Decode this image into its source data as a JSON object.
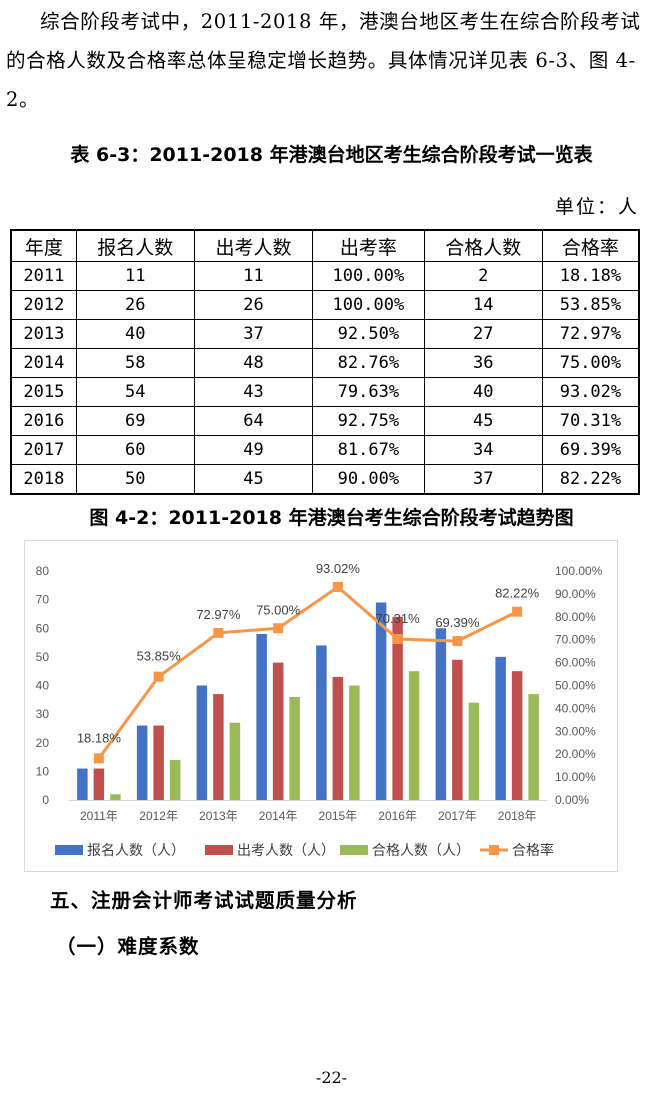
{
  "paragraph": {
    "text": "综合阶段考试中，2011-2018 年，港澳台地区考生在综合阶段考试的合格人数及合格率总体呈稳定增长趋势。具体情况详见表 6-3、图 4-2。"
  },
  "table": {
    "title": "表 6-3：2011-2018 年港澳台地区考生综合阶段考试一览表",
    "unit": "单位：人",
    "headers": [
      "年度",
      "报名人数",
      "出考人数",
      "出考率",
      "合格人数",
      "合格率"
    ],
    "rows": [
      [
        "2011",
        "11",
        "11",
        "100.00%",
        "2",
        "18.18%"
      ],
      [
        "2012",
        "26",
        "26",
        "100.00%",
        "14",
        "53.85%"
      ],
      [
        "2013",
        "40",
        "37",
        "92.50%",
        "27",
        "72.97%"
      ],
      [
        "2014",
        "58",
        "48",
        "82.76%",
        "36",
        "75.00%"
      ],
      [
        "2015",
        "54",
        "43",
        "79.63%",
        "40",
        "93.02%"
      ],
      [
        "2016",
        "69",
        "64",
        "92.75%",
        "45",
        "70.31%"
      ],
      [
        "2017",
        "60",
        "49",
        "81.67%",
        "34",
        "69.39%"
      ],
      [
        "2018",
        "50",
        "45",
        "90.00%",
        "37",
        "82.22%"
      ]
    ]
  },
  "figure_title": "图 4-2：2011-2018 年港澳台考生综合阶段考试趋势图",
  "chart_data": {
    "type": "bar",
    "categories": [
      "2011年",
      "2012年",
      "2013年",
      "2014年",
      "2015年",
      "2016年",
      "2017年",
      "2018年"
    ],
    "series": [
      {
        "name": "报名人数（人）",
        "type": "bar",
        "axis": "left",
        "color": "#4472C4",
        "values": [
          11,
          26,
          40,
          58,
          54,
          69,
          60,
          50
        ]
      },
      {
        "name": "出考人数（人）",
        "type": "bar",
        "axis": "left",
        "color": "#C0504D",
        "values": [
          11,
          26,
          37,
          48,
          43,
          64,
          49,
          45
        ]
      },
      {
        "name": "合格人数（人）",
        "type": "bar",
        "axis": "left",
        "color": "#9BBB59",
        "values": [
          2,
          14,
          27,
          36,
          40,
          45,
          34,
          37
        ]
      },
      {
        "name": "合格率",
        "type": "line",
        "axis": "right",
        "color": "#F79646",
        "values": [
          18.18,
          53.85,
          72.97,
          75.0,
          93.02,
          70.31,
          69.39,
          82.22
        ],
        "labels": [
          "18.18%",
          "53.85%",
          "72.97%",
          "75.00%",
          "93.02%",
          "70.31%",
          "69.39%",
          "82.22%"
        ]
      }
    ],
    "y_left": {
      "lim": [
        0,
        80
      ],
      "ticks": [
        "0",
        "10",
        "20",
        "30",
        "40",
        "50",
        "60",
        "70",
        "80"
      ]
    },
    "y_right": {
      "lim": [
        0,
        100
      ],
      "ticks": [
        "0.00%",
        "10.00%",
        "20.00%",
        "30.00%",
        "40.00%",
        "50.00%",
        "60.00%",
        "70.00%",
        "80.00%",
        "90.00%",
        "100.00%"
      ]
    },
    "grid": false,
    "legend_position": "bottom"
  },
  "heading1": "五、注册会计师考试试题质量分析",
  "heading2": "（一）难度系数",
  "page_number": "-22-"
}
